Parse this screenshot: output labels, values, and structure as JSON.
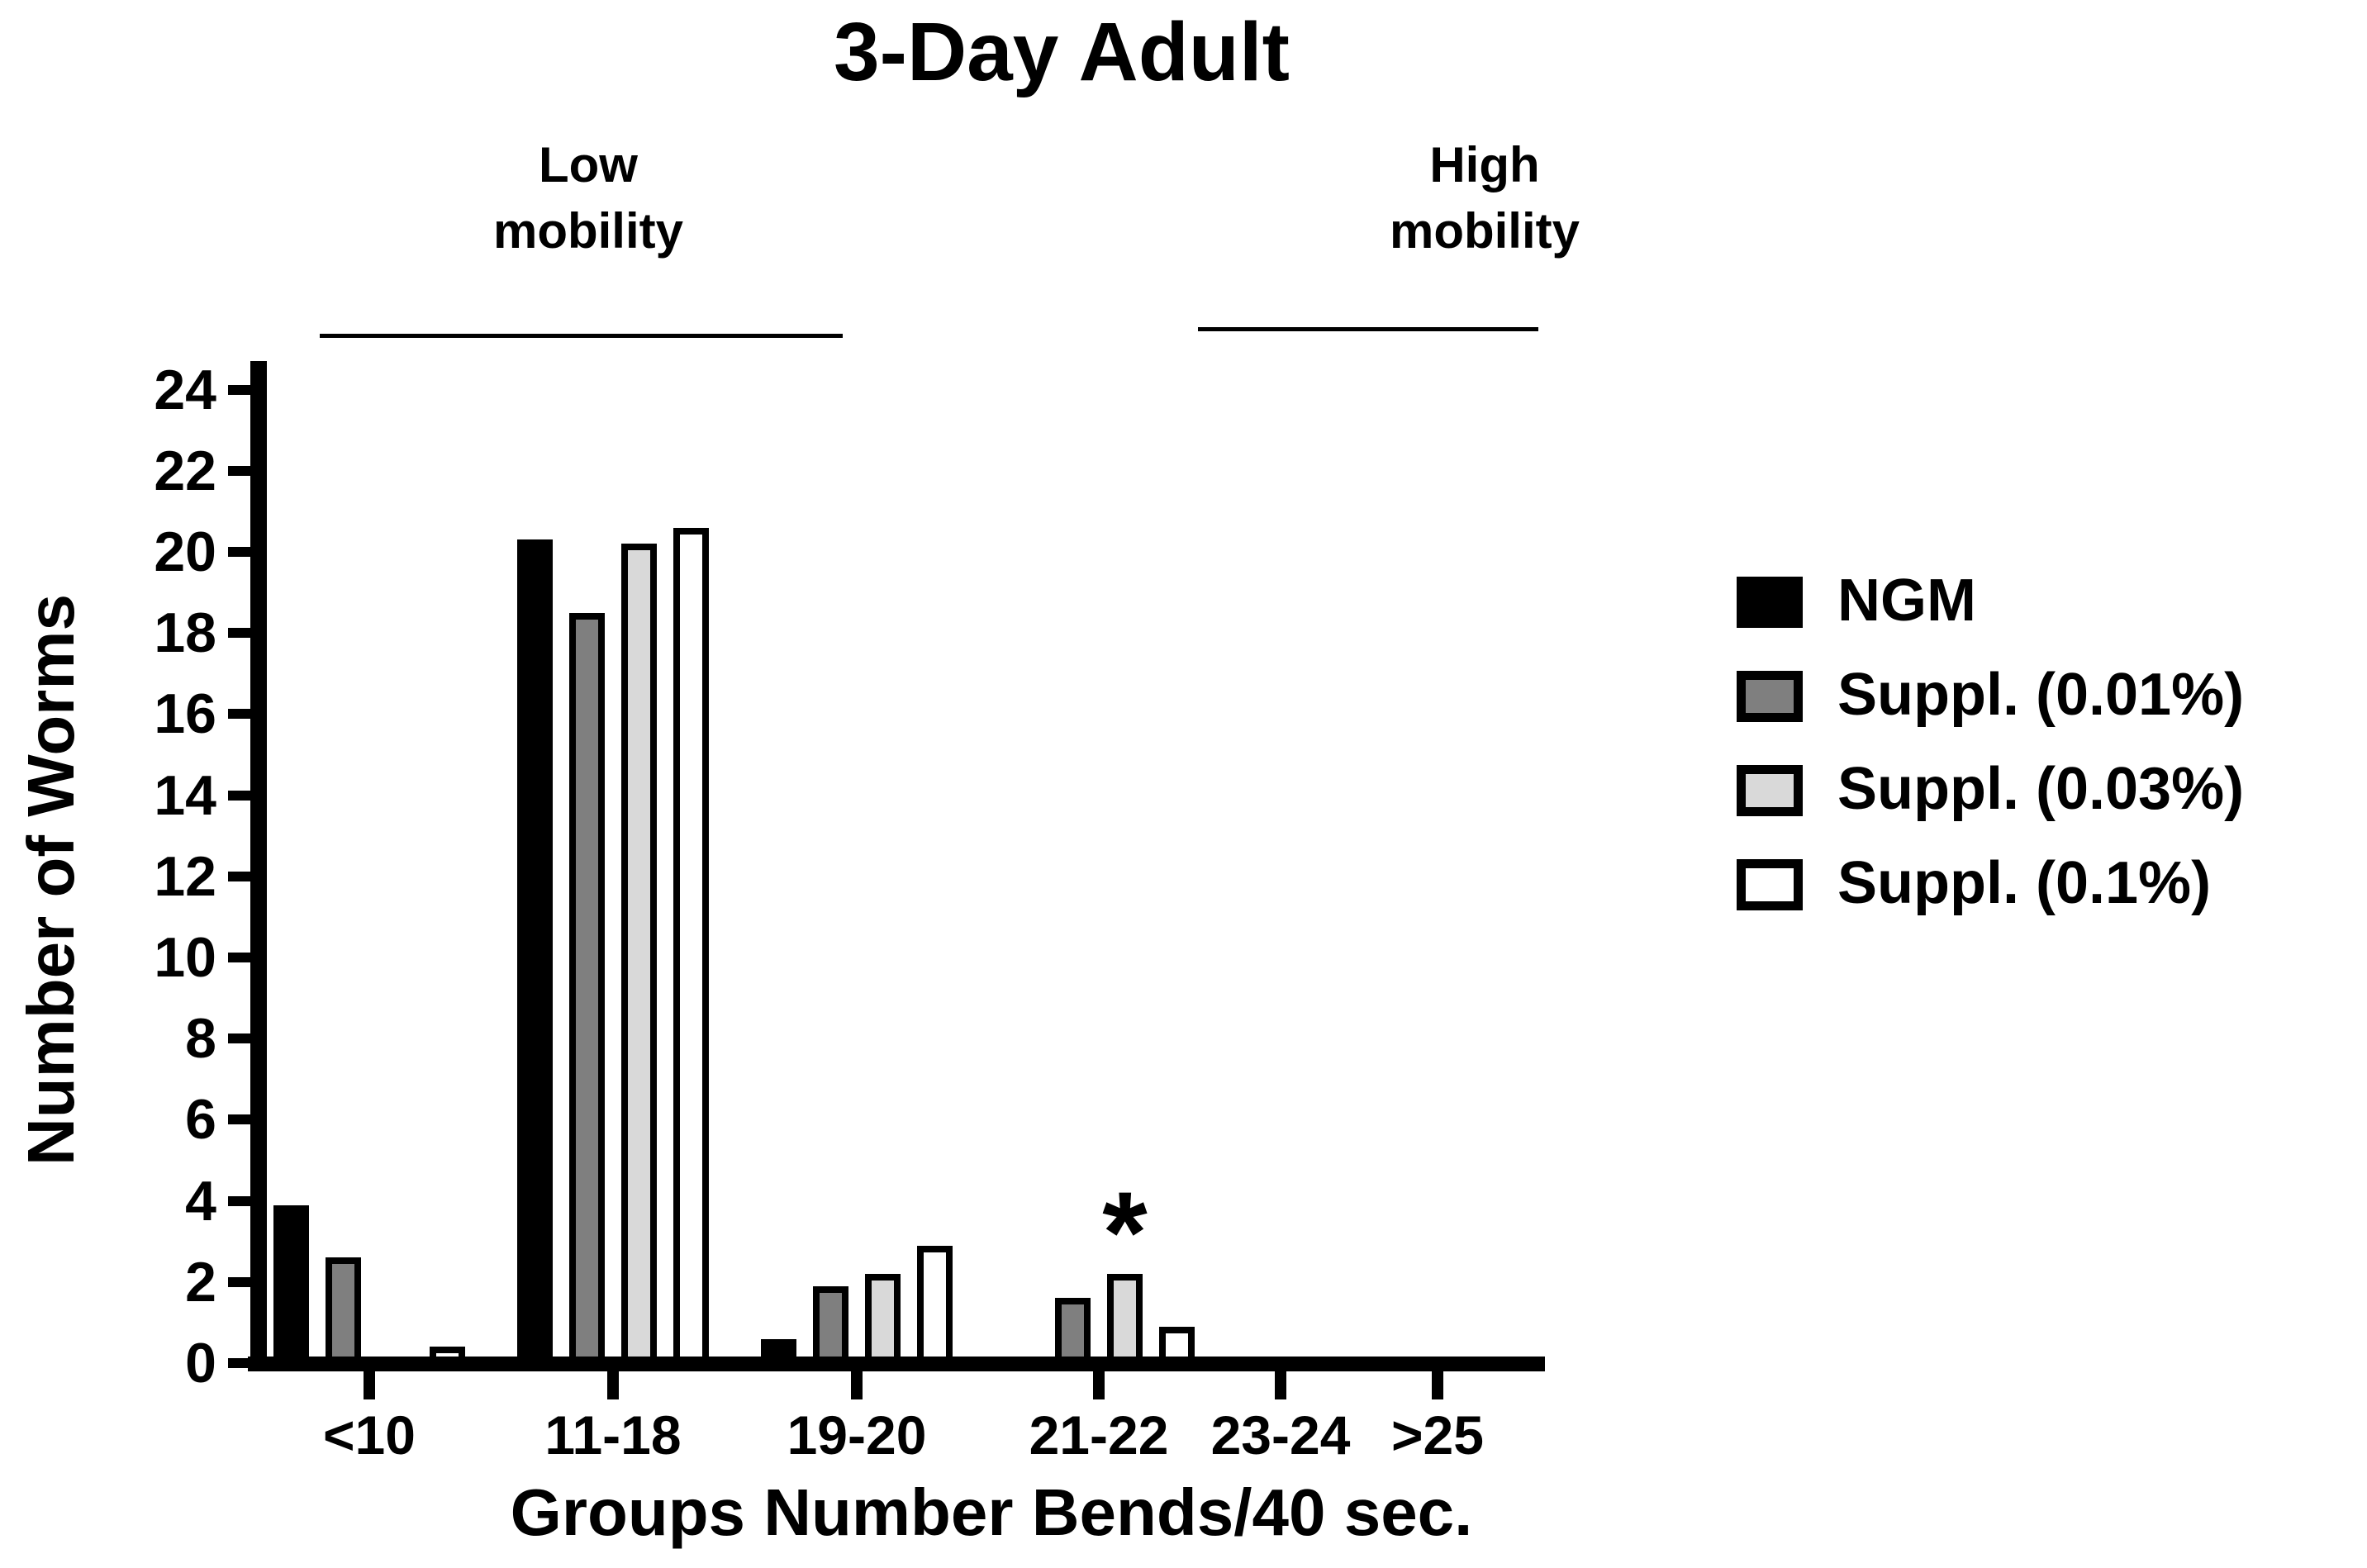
{
  "title": "3-Day Adult",
  "region_labels": {
    "low": {
      "lines": [
        "Low",
        "mobility"
      ]
    },
    "high": {
      "lines": [
        "High",
        "mobility"
      ]
    }
  },
  "chart_data": {
    "type": "bar",
    "title": "3-Day Adult",
    "xlabel": "Groups Number Bends/40 sec.",
    "ylabel": "Number of Worms",
    "ylim": [
      0,
      25
    ],
    "yticks": [
      0,
      2,
      4,
      6,
      8,
      10,
      12,
      14,
      16,
      18,
      20,
      22,
      24
    ],
    "categories": [
      "<10",
      "11-18",
      "19-20",
      "21-22",
      "23-24",
      ">25"
    ],
    "series": [
      {
        "name": "NGM",
        "fill": "#000000",
        "values": [
          3.9,
          20.3,
          0.6,
          0,
          0,
          0
        ]
      },
      {
        "name": "Suppl. (0.01%)",
        "fill": "#7f7f7f",
        "values": [
          2.6,
          18.5,
          1.9,
          1.6,
          0,
          0
        ]
      },
      {
        "name": "Suppl. (0.03%)",
        "fill": "#d9d9d9",
        "values": [
          0,
          20.2,
          2.2,
          2.2,
          0,
          0
        ]
      },
      {
        "name": "Suppl. (0.1%)",
        "fill": "#ffffff",
        "values": [
          0.2,
          20.6,
          2.9,
          0.9,
          0,
          0
        ]
      }
    ],
    "bar_outline": "#000000",
    "annotations": [
      {
        "text": "*",
        "category": "21-22",
        "series": "Suppl. (0.03%)"
      }
    ],
    "region_brackets": [
      {
        "label": "Low mobility",
        "categories": [
          "<10",
          "11-18"
        ]
      },
      {
        "label": "High mobility",
        "categories": [
          "21-22",
          "23-24",
          ">25"
        ]
      }
    ],
    "legend_position": "right",
    "grid": false
  }
}
